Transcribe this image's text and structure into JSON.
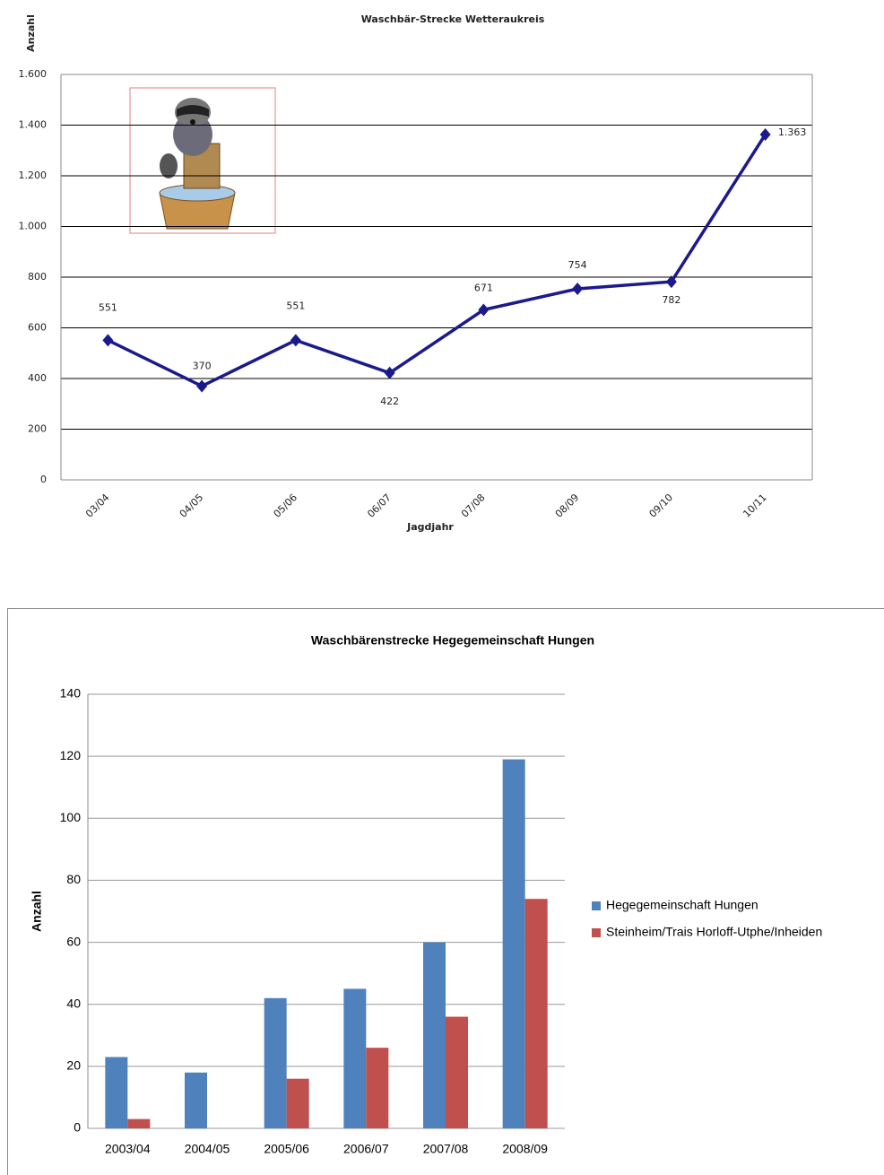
{
  "chart_data": [
    {
      "type": "line",
      "title": "Waschbär-Strecke Wetteraukreis",
      "y_label": "Anzahl",
      "x_label": "Jagdjahr",
      "categories": [
        "03/04",
        "04/05",
        "05/06",
        "06/07",
        "07/08",
        "08/09",
        "09/10",
        "10/11"
      ],
      "values": [
        551,
        370,
        551,
        422,
        671,
        754,
        782,
        1363
      ],
      "value_labels": [
        "551",
        "370",
        "551",
        "422",
        "671",
        "754",
        "782",
        "1.363"
      ],
      "color": "#1a1a8c",
      "ylim": [
        0,
        1600
      ],
      "yticks": [
        0,
        200,
        400,
        600,
        800,
        {
          "value": 1000,
          "label": "1.000"
        },
        {
          "value": 1200,
          "label": "1.200"
        },
        {
          "value": 1400,
          "label": "1.400"
        },
        {
          "value": 1600,
          "label": "1.600"
        }
      ],
      "grid": true
    },
    {
      "type": "bar",
      "title": "Waschbärenstrecke Hegegemeinschaft Hungen",
      "y_label": "Anzahl",
      "categories": [
        "2003/04",
        "2004/05",
        "2005/06",
        "2006/07",
        "2007/08",
        "2008/09"
      ],
      "series": [
        {
          "name": "Hegegemeinschaft Hungen",
          "color": "#4f81bd",
          "values": [
            23,
            18,
            42,
            45,
            60,
            119
          ]
        },
        {
          "name": "Steinheim/Trais Horloff-Utphe/Inheiden",
          "color": "#c0504d",
          "values": [
            3,
            null,
            16,
            26,
            36,
            74
          ]
        }
      ],
      "ylim": [
        0,
        140
      ],
      "yticks": [
        0,
        20,
        40,
        60,
        80,
        100,
        120,
        140
      ],
      "grid": true,
      "legend": "right"
    }
  ]
}
